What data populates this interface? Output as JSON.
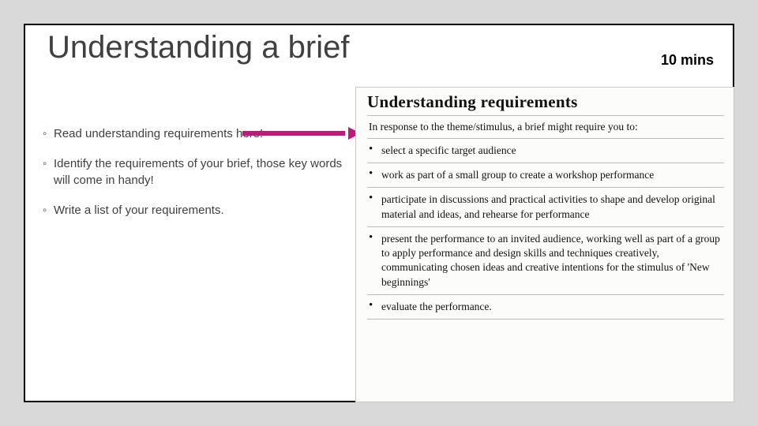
{
  "slide": {
    "title": "Understanding a brief",
    "duration_label": "10 mins",
    "bullets": [
      "Read understanding requirements here!",
      "Identify the requirements of your brief, those key words will come in handy!",
      "Write a list of your requirements."
    ],
    "arrow_color": "#c0187c"
  },
  "clipping": {
    "heading": "Understanding requirements",
    "lead": "In response to the theme/stimulus, a brief might require you to:",
    "items": [
      "select a specific target audience",
      "work as part of a small group to create a workshop performance",
      "participate in discussions and practical activities to shape and develop original material and ideas, and rehearse for performance",
      "present the performance to an invited audience, working well as part of a group to apply performance and design skills and techniques creatively, communicating chosen ideas and creative intentions for the stimulus of 'New beginnings'",
      "evaluate the performance."
    ]
  },
  "style": {
    "page_bg": "#d9d9d9",
    "frame_border": "#000000",
    "text_color": "#404040",
    "clip_bg": "#fcfcfa",
    "rule_color": "#bbbbbb"
  }
}
